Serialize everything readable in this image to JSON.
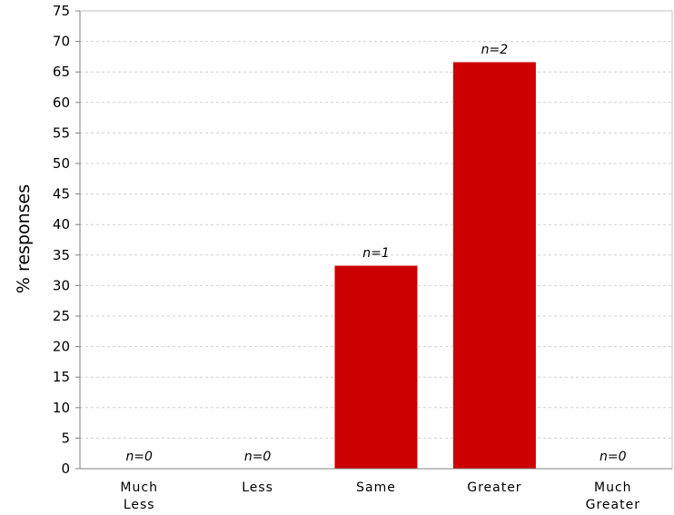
{
  "chart_data": {
    "type": "bar",
    "categories": [
      "Much Less",
      "Less",
      "Same",
      "Greater",
      "Much Greater"
    ],
    "category_lines": [
      [
        "Much",
        "Less"
      ],
      [
        "Less"
      ],
      [
        "Same"
      ],
      [
        "Greater"
      ],
      [
        "Much",
        "Greater"
      ]
    ],
    "values": [
      0,
      0,
      33.33,
      66.67,
      0
    ],
    "counts": [
      "n=0",
      "n=0",
      "n=1",
      "n=2",
      "n=0"
    ],
    "ylabel": "% responses",
    "ylim": [
      0,
      75
    ],
    "yticks": [
      0,
      5,
      10,
      15,
      20,
      25,
      30,
      35,
      40,
      45,
      50,
      55,
      60,
      65,
      70,
      75
    ],
    "grid": true,
    "bar_color": "#cc0000"
  }
}
